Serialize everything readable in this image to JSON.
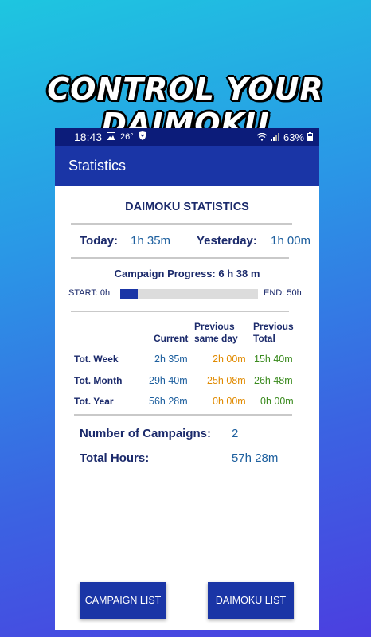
{
  "promo": {
    "headline": "CONTROL YOUR DAIMOKU"
  },
  "status_bar": {
    "time": "18:43",
    "temp": "26°",
    "battery": "63%"
  },
  "app_bar": {
    "title": "Statistics"
  },
  "stats": {
    "heading": "DAIMOKU STATISTICS",
    "today_label": "Today:",
    "today_value": "1h 35m",
    "yesterday_label": "Yesterday:",
    "yesterday_value": "1h 00m",
    "campaign_progress_label": "Campaign Progress: 6 h 38 m",
    "start_label": "START: 0h",
    "end_label": "END: 50h",
    "progress_fraction": 0.13,
    "columns": {
      "current": "Current",
      "previous_same_day": "Previous same day",
      "previous_total": "Previous Total"
    },
    "rows": [
      {
        "label": "Tot. Week",
        "current": "2h 35m",
        "prev_same": "2h 00m",
        "prev_total": "15h 40m"
      },
      {
        "label": "Tot. Month",
        "current": "29h 40m",
        "prev_same": "25h 08m",
        "prev_total": "26h 48m"
      },
      {
        "label": "Tot. Year",
        "current": "56h 28m",
        "prev_same": "0h 00m",
        "prev_total": "0h 00m"
      }
    ],
    "campaigns_label": "Number of Campaigns:",
    "campaigns_value": "2",
    "total_hours_label": "Total Hours:",
    "total_hours_value": "57h 28m"
  },
  "buttons": {
    "campaign_list": "CAMPAIGN LIST",
    "daimoku_list": "DAIMOKU LIST"
  },
  "colors": {
    "app_bar": "#1a35a6",
    "status_bar": "#0c1c7a",
    "label_navy": "#1b2a6b",
    "value_blue": "#1d5f9e",
    "value_orange": "#e08a00",
    "value_green": "#3a8a1e"
  }
}
